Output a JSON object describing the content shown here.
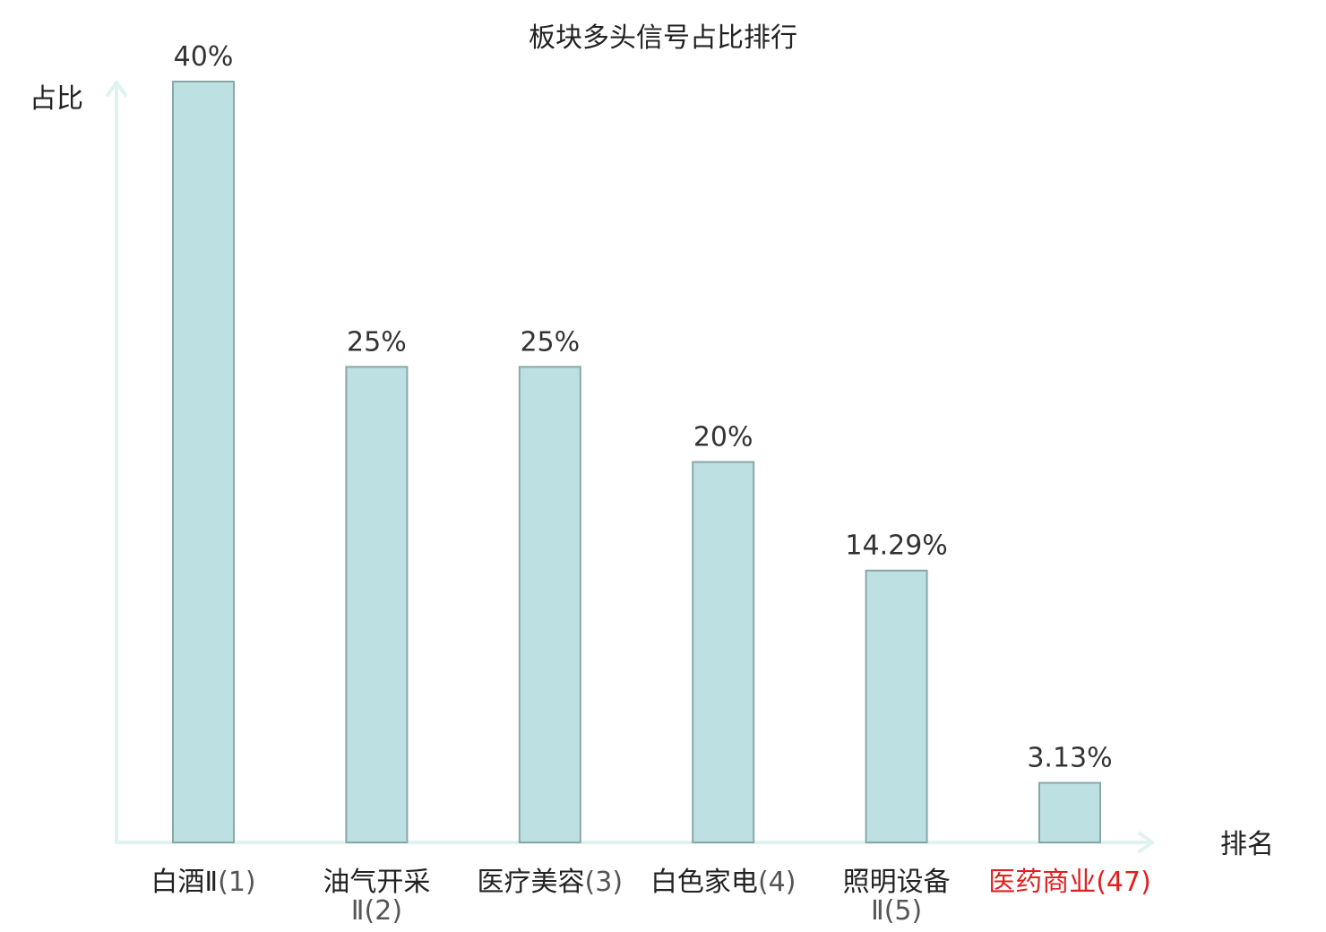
{
  "chart_data": {
    "type": "bar",
    "title": "板块多头信号占比排行",
    "ylabel": "占比",
    "xlabel": "排名",
    "ylim": [
      0,
      40
    ],
    "grid": false,
    "categories": [
      {
        "lines": [
          "白酒Ⅱ",
          "(1)"
        ],
        "inline": true,
        "name": "白酒Ⅱ",
        "rank": "(1)"
      },
      {
        "lines": [
          "油气开采",
          "Ⅱ(2)"
        ],
        "inline": false,
        "name": "油气开采",
        "rank": "Ⅱ(2)"
      },
      {
        "lines": [
          "医疗美容",
          "(3)"
        ],
        "inline": true,
        "name": "医疗美容",
        "rank": "(3)"
      },
      {
        "lines": [
          "白色家电",
          "(4)"
        ],
        "inline": true,
        "name": "白色家电",
        "rank": "(4)"
      },
      {
        "lines": [
          "照明设备",
          "Ⅱ(5)"
        ],
        "inline": false,
        "name": "照明设备",
        "rank": "Ⅱ(5)"
      },
      {
        "lines": [
          "医药商业",
          "(47)"
        ],
        "inline": true,
        "name": "医药商业",
        "rank": "(47)",
        "highlight": true
      }
    ],
    "values": [
      40,
      25,
      25,
      20,
      14.29,
      3.13
    ],
    "value_labels": [
      "40%",
      "25%",
      "25%",
      "20%",
      "14.29%",
      "3.13%"
    ],
    "colors": {
      "bar_fill": "#bde0e3",
      "bar_stroke": "#8aa7a8",
      "axis": "#e0f2ef",
      "highlight": "#e02020"
    }
  }
}
